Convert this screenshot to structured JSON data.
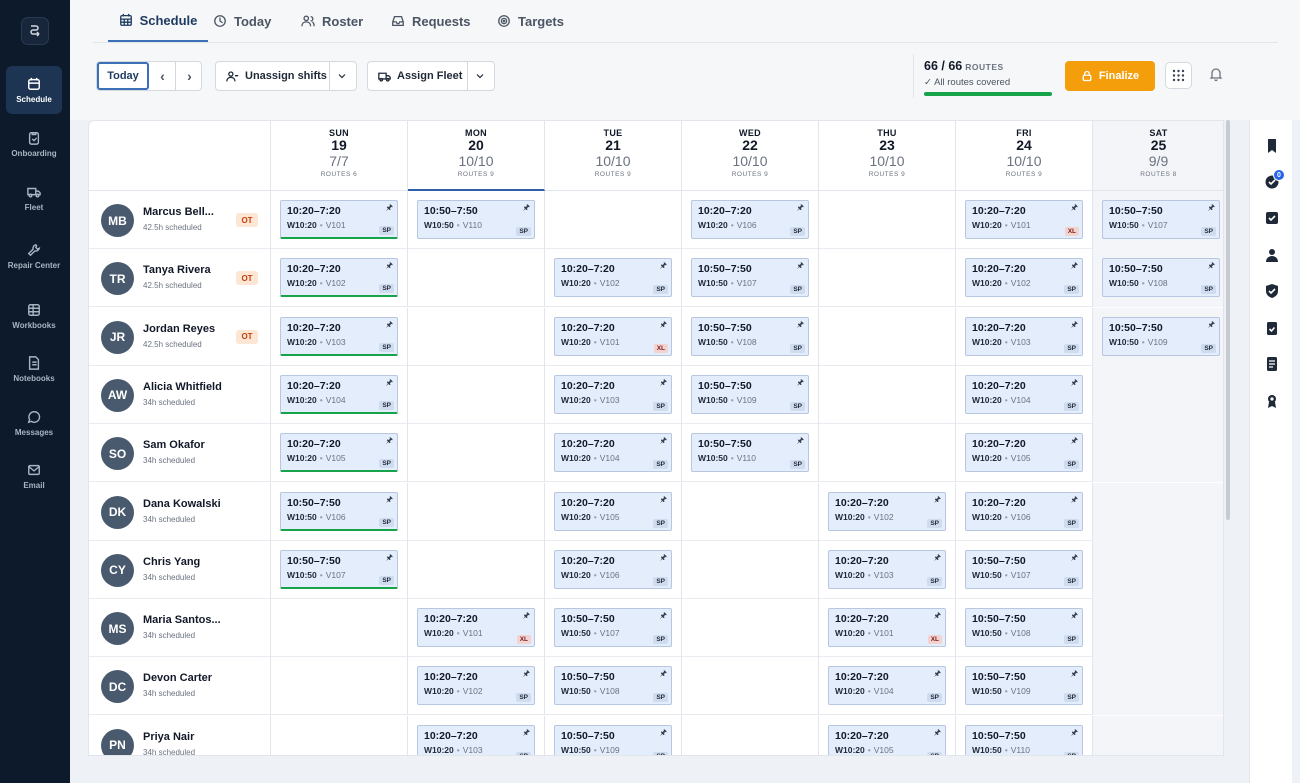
{
  "nav": {
    "items": [
      {
        "label": "Schedule",
        "icon": "calendar-icon",
        "active": true
      },
      {
        "label": "Onboarding",
        "icon": "clipboard-icon"
      },
      {
        "label": "Fleet",
        "icon": "truck-icon"
      },
      {
        "label": "Repair Center",
        "icon": "wrench-icon"
      },
      {
        "label": "Workbooks",
        "icon": "grid-icon"
      },
      {
        "label": "Notebooks",
        "icon": "notebook-icon"
      },
      {
        "label": "Messages",
        "icon": "chat-icon"
      },
      {
        "label": "Email",
        "icon": "mail-icon"
      }
    ]
  },
  "tabs": [
    {
      "label": "Schedule",
      "icon": "calendar-icon",
      "active": true
    },
    {
      "label": "Today",
      "icon": "clock-icon"
    },
    {
      "label": "Roster",
      "icon": "people-icon"
    },
    {
      "label": "Requests",
      "icon": "inbox-icon"
    },
    {
      "label": "Targets",
      "icon": "target-icon"
    }
  ],
  "toolbar": {
    "today": "Today",
    "prev": "‹",
    "next": "›",
    "unassign": "Unassign shifts",
    "assign_fleet": "Assign Fleet",
    "finalize": "Finalize"
  },
  "coverage": {
    "count": "66 / 66",
    "unit": "ROUTES",
    "status": "✓ All routes covered",
    "fraction": 1.0,
    "color": "#16a34a"
  },
  "days": [
    {
      "name": "SUN",
      "date": "19",
      "fill": "7/7",
      "routes": "ROUTES 6",
      "weekend": false
    },
    {
      "name": "MON",
      "date": "20",
      "fill": "10/10",
      "routes": "ROUTES 9",
      "selected": true
    },
    {
      "name": "TUE",
      "date": "21",
      "fill": "10/10",
      "routes": "ROUTES 9"
    },
    {
      "name": "WED",
      "date": "22",
      "fill": "10/10",
      "routes": "ROUTES 9"
    },
    {
      "name": "THU",
      "date": "23",
      "fill": "10/10",
      "routes": "ROUTES 9"
    },
    {
      "name": "FRI",
      "date": "24",
      "fill": "10/10",
      "routes": "ROUTES 9"
    },
    {
      "name": "SAT",
      "date": "25",
      "fill": "9/9",
      "routes": "ROUTES 8",
      "weekend": true
    }
  ],
  "employees": [
    {
      "initials": "MB",
      "name": "Marcus Bell...",
      "hours": "42.5h scheduled",
      "ot": "OT",
      "shifts": [
        {
          "time": "10:20–7:20",
          "code": "W10:20",
          "veh": "V101",
          "tag": "SP",
          "covered": true
        },
        {
          "time": "10:50–7:50",
          "code": "W10:50",
          "veh": "V110",
          "tag": "SP"
        },
        null,
        {
          "time": "10:20–7:20",
          "code": "W10:20",
          "veh": "V106",
          "tag": "SP"
        },
        null,
        {
          "time": "10:20–7:20",
          "code": "W10:20",
          "veh": "V101",
          "tag": "XL"
        },
        {
          "time": "10:50–7:50",
          "code": "W10:50",
          "veh": "V107",
          "tag": "SP"
        }
      ]
    },
    {
      "initials": "TR",
      "name": "Tanya Rivera",
      "hours": "42.5h scheduled",
      "ot": "OT",
      "shifts": [
        {
          "time": "10:20–7:20",
          "code": "W10:20",
          "veh": "V102",
          "tag": "SP",
          "covered": true
        },
        null,
        {
          "time": "10:20–7:20",
          "code": "W10:20",
          "veh": "V102",
          "tag": "SP"
        },
        {
          "time": "10:50–7:50",
          "code": "W10:50",
          "veh": "V107",
          "tag": "SP"
        },
        null,
        {
          "time": "10:20–7:20",
          "code": "W10:20",
          "veh": "V102",
          "tag": "SP"
        },
        {
          "time": "10:50–7:50",
          "code": "W10:50",
          "veh": "V108",
          "tag": "SP"
        }
      ]
    },
    {
      "initials": "JR",
      "name": "Jordan Reyes",
      "hours": "42.5h scheduled",
      "ot": "OT",
      "shifts": [
        {
          "time": "10:20–7:20",
          "code": "W10:20",
          "veh": "V103",
          "tag": "SP",
          "covered": true
        },
        null,
        {
          "time": "10:20–7:20",
          "code": "W10:20",
          "veh": "V101",
          "tag": "XL"
        },
        {
          "time": "10:50–7:50",
          "code": "W10:50",
          "veh": "V108",
          "tag": "SP"
        },
        null,
        {
          "time": "10:20–7:20",
          "code": "W10:20",
          "veh": "V103",
          "tag": "SP"
        },
        {
          "time": "10:50–7:50",
          "code": "W10:50",
          "veh": "V109",
          "tag": "SP"
        }
      ]
    },
    {
      "initials": "AW",
      "name": "Alicia Whitfield",
      "hours": "34h scheduled",
      "ot": "",
      "shifts": [
        {
          "time": "10:20–7:20",
          "code": "W10:20",
          "veh": "V104",
          "tag": "SP",
          "covered": true
        },
        null,
        {
          "time": "10:20–7:20",
          "code": "W10:20",
          "veh": "V103",
          "tag": "SP"
        },
        {
          "time": "10:50–7:50",
          "code": "W10:50",
          "veh": "V109",
          "tag": "SP"
        },
        null,
        {
          "time": "10:20–7:20",
          "code": "W10:20",
          "veh": "V104",
          "tag": "SP"
        },
        null
      ]
    },
    {
      "initials": "SO",
      "name": "Sam Okafor",
      "hours": "34h scheduled",
      "ot": "",
      "shifts": [
        {
          "time": "10:20–7:20",
          "code": "W10:20",
          "veh": "V105",
          "tag": "SP",
          "covered": true
        },
        null,
        {
          "time": "10:20–7:20",
          "code": "W10:20",
          "veh": "V104",
          "tag": "SP"
        },
        {
          "time": "10:50–7:50",
          "code": "W10:50",
          "veh": "V110",
          "tag": "SP"
        },
        null,
        {
          "time": "10:20–7:20",
          "code": "W10:20",
          "veh": "V105",
          "tag": "SP"
        },
        null
      ]
    },
    {
      "initials": "DK",
      "name": "Dana Kowalski",
      "hours": "34h scheduled",
      "ot": "",
      "shifts": [
        {
          "time": "10:50–7:50",
          "code": "W10:50",
          "veh": "V106",
          "tag": "SP",
          "covered": true
        },
        null,
        {
          "time": "10:20–7:20",
          "code": "W10:20",
          "veh": "V105",
          "tag": "SP"
        },
        null,
        {
          "time": "10:20–7:20",
          "code": "W10:20",
          "veh": "V102",
          "tag": "SP"
        },
        {
          "time": "10:20–7:20",
          "code": "W10:20",
          "veh": "V106",
          "tag": "SP"
        },
        null
      ]
    },
    {
      "initials": "CY",
      "name": "Chris Yang",
      "hours": "34h scheduled",
      "ot": "",
      "shifts": [
        {
          "time": "10:50–7:50",
          "code": "W10:50",
          "veh": "V107",
          "tag": "SP",
          "covered": true
        },
        null,
        {
          "time": "10:20–7:20",
          "code": "W10:20",
          "veh": "V106",
          "tag": "SP"
        },
        null,
        {
          "time": "10:20–7:20",
          "code": "W10:20",
          "veh": "V103",
          "tag": "SP"
        },
        {
          "time": "10:50–7:50",
          "code": "W10:50",
          "veh": "V107",
          "tag": "SP"
        },
        null
      ]
    },
    {
      "initials": "MS",
      "name": "Maria Santos...",
      "hours": "34h scheduled",
      "ot": "",
      "shifts": [
        null,
        {
          "time": "10:20–7:20",
          "code": "W10:20",
          "veh": "V101",
          "tag": "XL"
        },
        {
          "time": "10:50–7:50",
          "code": "W10:50",
          "veh": "V107",
          "tag": "SP"
        },
        null,
        {
          "time": "10:20–7:20",
          "code": "W10:20",
          "veh": "V101",
          "tag": "XL"
        },
        {
          "time": "10:50–7:50",
          "code": "W10:50",
          "veh": "V108",
          "tag": "SP"
        },
        null
      ]
    },
    {
      "initials": "DC",
      "name": "Devon Carter",
      "hours": "34h scheduled",
      "ot": "",
      "shifts": [
        null,
        {
          "time": "10:20–7:20",
          "code": "W10:20",
          "veh": "V102",
          "tag": "SP"
        },
        {
          "time": "10:50–7:50",
          "code": "W10:50",
          "veh": "V108",
          "tag": "SP"
        },
        null,
        {
          "time": "10:20–7:20",
          "code": "W10:20",
          "veh": "V104",
          "tag": "SP"
        },
        {
          "time": "10:50–7:50",
          "code": "W10:50",
          "veh": "V109",
          "tag": "SP"
        },
        null
      ]
    },
    {
      "initials": "PN",
      "name": "Priya Nair",
      "hours": "34h scheduled",
      "ot": "",
      "shifts": [
        null,
        {
          "time": "10:20–7:20",
          "code": "W10:20",
          "veh": "V103",
          "tag": "SP"
        },
        {
          "time": "10:50–7:50",
          "code": "W10:50",
          "veh": "V109",
          "tag": "SP"
        },
        null,
        {
          "time": "10:20–7:20",
          "code": "W10:20",
          "veh": "V105",
          "tag": "SP"
        },
        {
          "time": "10:50–7:50",
          "code": "W10:50",
          "veh": "V110",
          "tag": "SP"
        },
        null
      ]
    }
  ],
  "right_panel": {
    "badge": "0",
    "icons": [
      "bookmark-icon",
      "check-circle-icon",
      "checkbox-icon",
      "person-icon",
      "shield-icon",
      "clipboard-check-icon",
      "notes-icon",
      "award-icon"
    ]
  }
}
